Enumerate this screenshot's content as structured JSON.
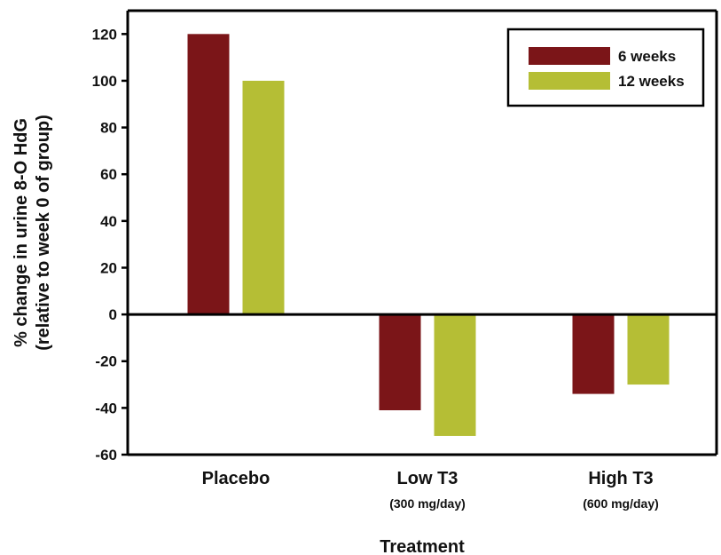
{
  "chart_data": {
    "type": "bar",
    "categories": [
      "Placebo",
      "Low T3",
      "High T3"
    ],
    "category_sublabels": [
      "",
      "(300 mg/day)",
      "(600 mg/day)"
    ],
    "series": [
      {
        "name": "6 weeks",
        "color": "#7b1518",
        "values": [
          120,
          -41,
          -34
        ]
      },
      {
        "name": "12 weeks",
        "color": "#b5be35",
        "values": [
          100,
          -52,
          -30
        ]
      }
    ],
    "xlabel": "Treatment",
    "ylabel_lines": [
      "% change in urine 8-O HdG",
      "(relative to week 0 of group)"
    ],
    "ylim": [
      -60,
      130
    ],
    "yticks": [
      -60,
      -40,
      -20,
      0,
      20,
      40,
      60,
      80,
      100,
      120
    ],
    "legend_position": "top-right",
    "grid": false
  }
}
